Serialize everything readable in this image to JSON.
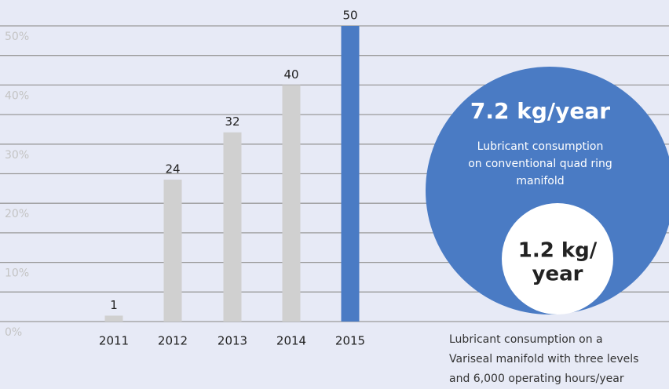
{
  "chart_data": {
    "type": "bar",
    "categories": [
      "2011",
      "2012",
      "2013",
      "2014",
      "2015"
    ],
    "values": [
      1,
      24,
      32,
      40,
      50
    ],
    "colors": [
      "#d0d0d0",
      "#d0d0d0",
      "#d0d0d0",
      "#d0d0d0",
      "#4a7bc4"
    ],
    "ylim": [
      0,
      50
    ],
    "yticks": [
      {
        "value": 0,
        "label": "0%"
      },
      {
        "value": 10,
        "label": "10%"
      },
      {
        "value": 20,
        "label": "20%"
      },
      {
        "value": 30,
        "label": "30%"
      },
      {
        "value": 40,
        "label": "40%"
      },
      {
        "value": 50,
        "label": "50%"
      }
    ],
    "minor_yticks": [
      5,
      15,
      25,
      35,
      45
    ],
    "grid": true,
    "big_circle": {
      "title": "7.2 kg/year",
      "lines": [
        "Lubricant consumption",
        "on conventional quad ring",
        "manifold"
      ]
    },
    "small_circle": {
      "lines": [
        "1.2 kg/",
        "year"
      ]
    },
    "caption": [
      "Lubricant consumption on a",
      "Variseal manifold with three levels",
      "and 6,000 operating hours/year"
    ]
  }
}
